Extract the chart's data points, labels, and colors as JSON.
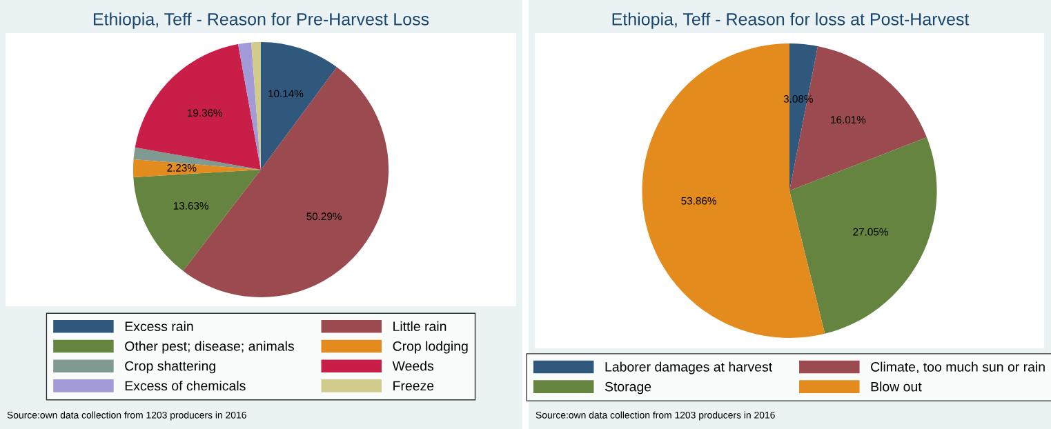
{
  "chart_data": [
    {
      "type": "pie",
      "title": "Ethiopia, Teff - Reason for Pre-Harvest Loss",
      "categories": [
        "Excess rain",
        "Little rain",
        "Other pest; disease; animals",
        "Crop lodging",
        "Crop shattering",
        "Weeds",
        "Excess of chemicals",
        "Freeze"
      ],
      "values": [
        10.14,
        50.29,
        13.63,
        2.23,
        1.5,
        19.36,
        1.65,
        1.2
      ],
      "value_labels": [
        "10.14%",
        "50.29%",
        "13.63%",
        "2.23%",
        null,
        "19.36%",
        null,
        null
      ],
      "colors": [
        "#30587c",
        "#9b4a4f",
        "#64843f",
        "#e38b1d",
        "#7f9a91",
        "#c81e47",
        "#a39bd7",
        "#d1cb8c"
      ],
      "legend": "bottom",
      "annotations": [
        "Source:own data collection from 1203 producers in 2016"
      ]
    },
    {
      "type": "pie",
      "title": "Ethiopia, Teff - Reason for loss at Post-Harvest",
      "categories": [
        "Laborer damages at harvest",
        "Climate, too much sun or rain",
        "Storage",
        "Blow out"
      ],
      "values": [
        3.08,
        16.01,
        27.05,
        53.86
      ],
      "value_labels": [
        "3.08%",
        "16.01%",
        "27.05%",
        "53.86%"
      ],
      "colors": [
        "#30587c",
        "#9b4a4f",
        "#64843f",
        "#e38b1d"
      ],
      "legend": "bottom",
      "annotations": [
        "Source:own data collection from 1203 producers in 2016"
      ]
    }
  ]
}
